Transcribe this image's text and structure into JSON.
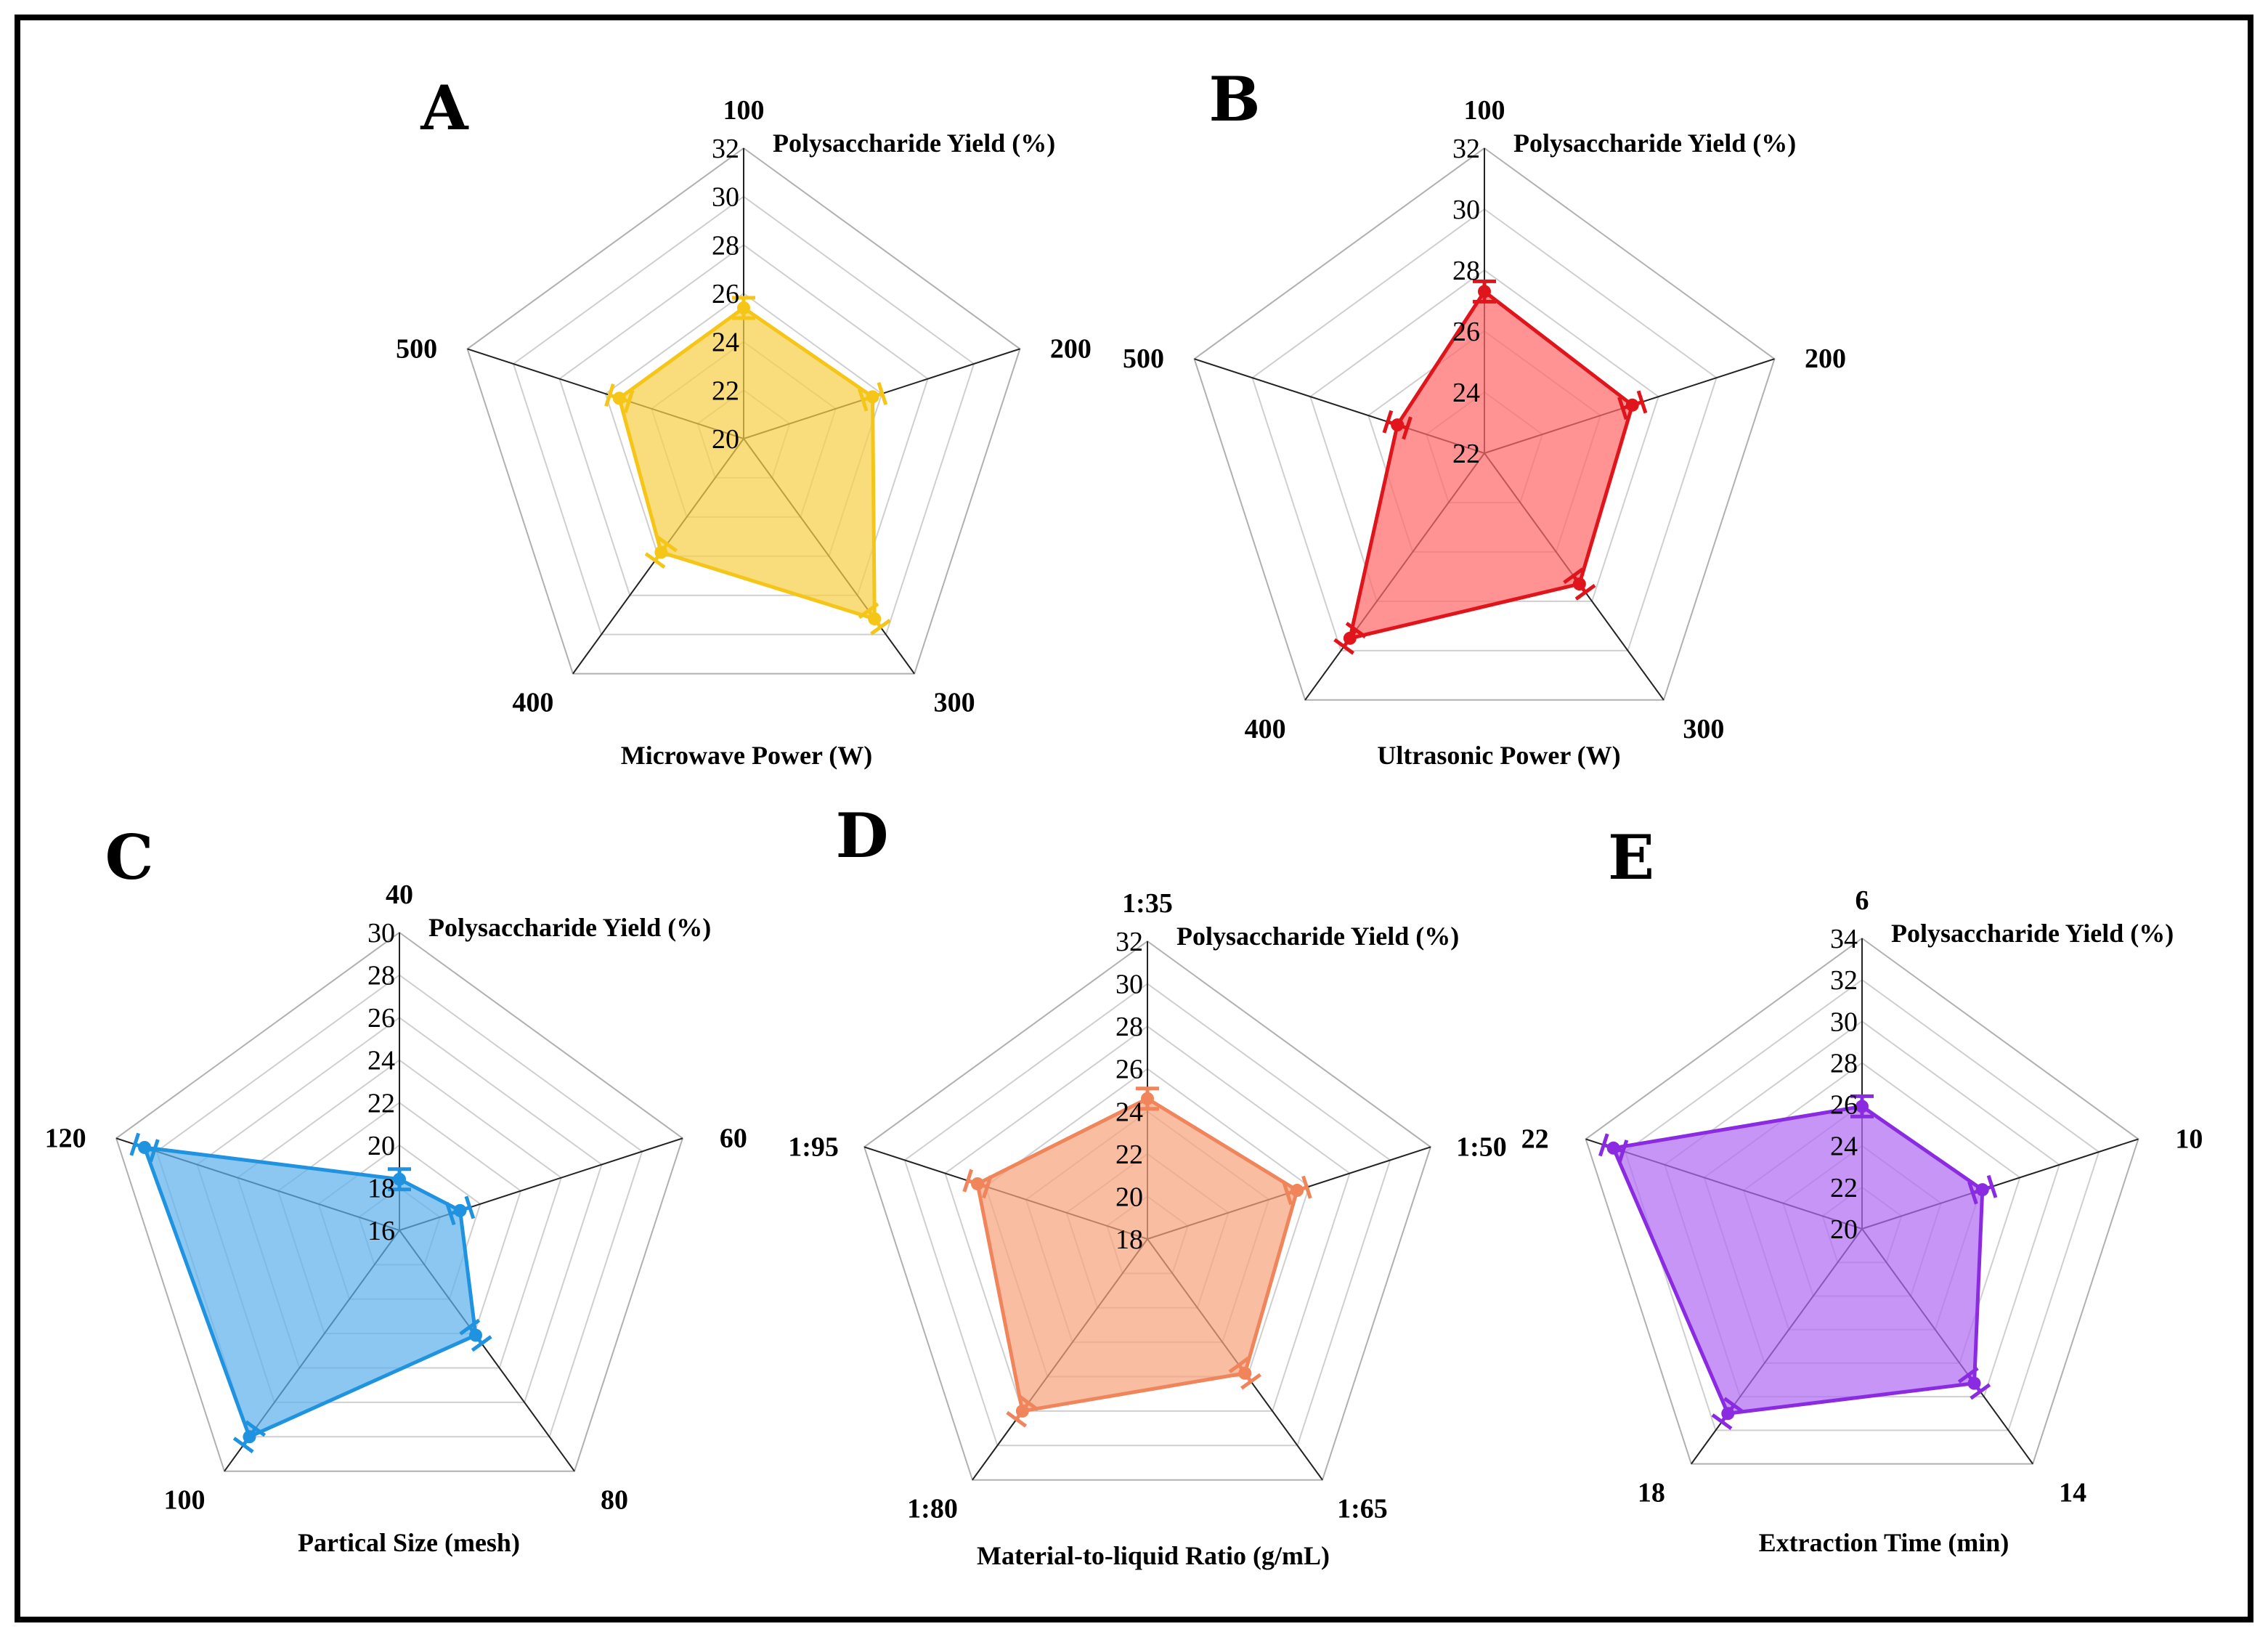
{
  "chart_data": [
    {
      "type": "radar",
      "panel": "A",
      "title": "Microwave Power (W)",
      "value_label": "Polysaccharide Yield (%)",
      "categories": [
        "100",
        "200",
        "300",
        "400",
        "500"
      ],
      "ticks": [
        "20",
        "22",
        "24",
        "26",
        "28",
        "30",
        "32"
      ],
      "rlim": [
        20,
        32
      ],
      "values": [
        25.4,
        25.6,
        29.2,
        25.8,
        25.4
      ],
      "color": "#f5c518",
      "fill": "#f7d04a"
    },
    {
      "type": "radar",
      "panel": "B",
      "title": "Ultrasonic Power (W)",
      "value_label": "Polysaccharide Yield (%)",
      "categories": [
        "100",
        "200",
        "300",
        "400",
        "500"
      ],
      "ticks": [
        "22",
        "24",
        "26",
        "28",
        "30",
        "32"
      ],
      "rlim": [
        22,
        32
      ],
      "values": [
        27.3,
        27.1,
        27.3,
        29.5,
        25.0
      ],
      "color": "#e0151b",
      "fill": "#ff6a6a"
    },
    {
      "type": "radar",
      "panel": "C",
      "title": "Partical Size (mesh)",
      "value_label": "Polysaccharide Yield (%)",
      "categories": [
        "40",
        "60",
        "80",
        "100",
        "120"
      ],
      "ticks": [
        "16",
        "18",
        "20",
        "22",
        "24",
        "26",
        "28",
        "30"
      ],
      "rlim": [
        16,
        30
      ],
      "values": [
        18.4,
        19.0,
        22.1,
        28.0,
        28.6
      ],
      "color": "#1f93e0",
      "fill": "#5fb2ec"
    },
    {
      "type": "radar",
      "panel": "D",
      "title": "Material-to-liquid Ratio (g/mL)",
      "value_label": "Polysaccharide Yield (%)",
      "categories": [
        "1:35",
        "1:50",
        "1:65",
        "1:80",
        "1:95"
      ],
      "ticks": [
        "18",
        "20",
        "22",
        "24",
        "26",
        "28",
        "30",
        "32"
      ],
      "rlim": [
        18,
        32
      ],
      "values": [
        24.6,
        25.4,
        25.8,
        28.0,
        26.4
      ],
      "color": "#f0845a",
      "fill": "#f7a47e"
    },
    {
      "type": "radar",
      "panel": "E",
      "title": "Extraction Time (min)",
      "value_label": "Polysaccharide Yield (%)",
      "categories": [
        "6",
        "10",
        "14",
        "18",
        "22"
      ],
      "ticks": [
        "20",
        "22",
        "24",
        "26",
        "28",
        "30",
        "32",
        "34"
      ],
      "rlim": [
        20,
        34
      ],
      "values": [
        25.9,
        26.1,
        29.2,
        31.0,
        32.6
      ],
      "color": "#8a2be2",
      "fill": "#b06cf2"
    }
  ]
}
